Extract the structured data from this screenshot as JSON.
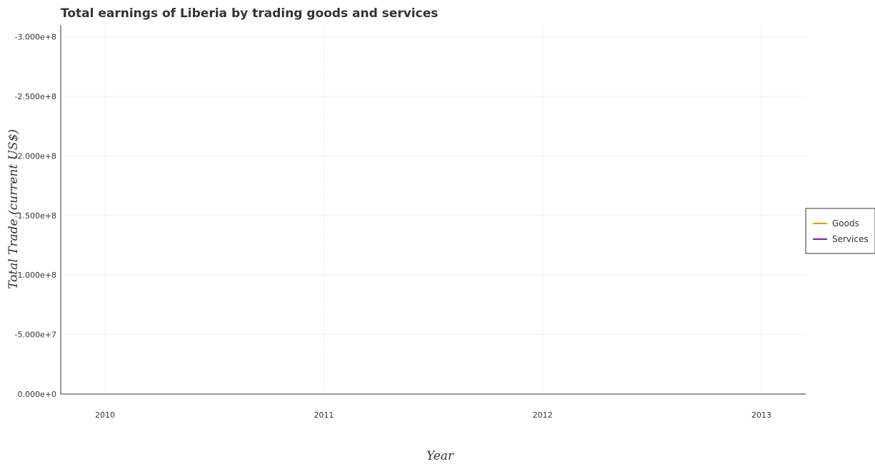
{
  "chart_data": {
    "type": "line",
    "title": "Total earnings of Liberia by trading goods and services",
    "xlabel": "Year",
    "ylabel": "Total Trade (current US$)",
    "categories": [
      "2010",
      "2011",
      "2012",
      "2013"
    ],
    "y_ticks": [
      0,
      -50000000,
      -100000000,
      -150000000,
      -200000000,
      -250000000,
      -300000000
    ],
    "y_tick_labels": [
      "0.000e+0",
      "-5.000e+7",
      "-1.000e+8",
      "-1.500e+8",
      "-2.000e+8",
      "-2.500e+8",
      "-3.000e+8"
    ],
    "ylim": [
      0,
      -310000000
    ],
    "grid": true,
    "legend_position": "right",
    "series": [
      {
        "name": "Goods",
        "color": "#e69f00",
        "values": [
          null,
          null,
          null,
          null
        ]
      },
      {
        "name": "Services",
        "color": "#8b1a9e",
        "values": [
          null,
          null,
          null,
          null
        ]
      }
    ]
  }
}
